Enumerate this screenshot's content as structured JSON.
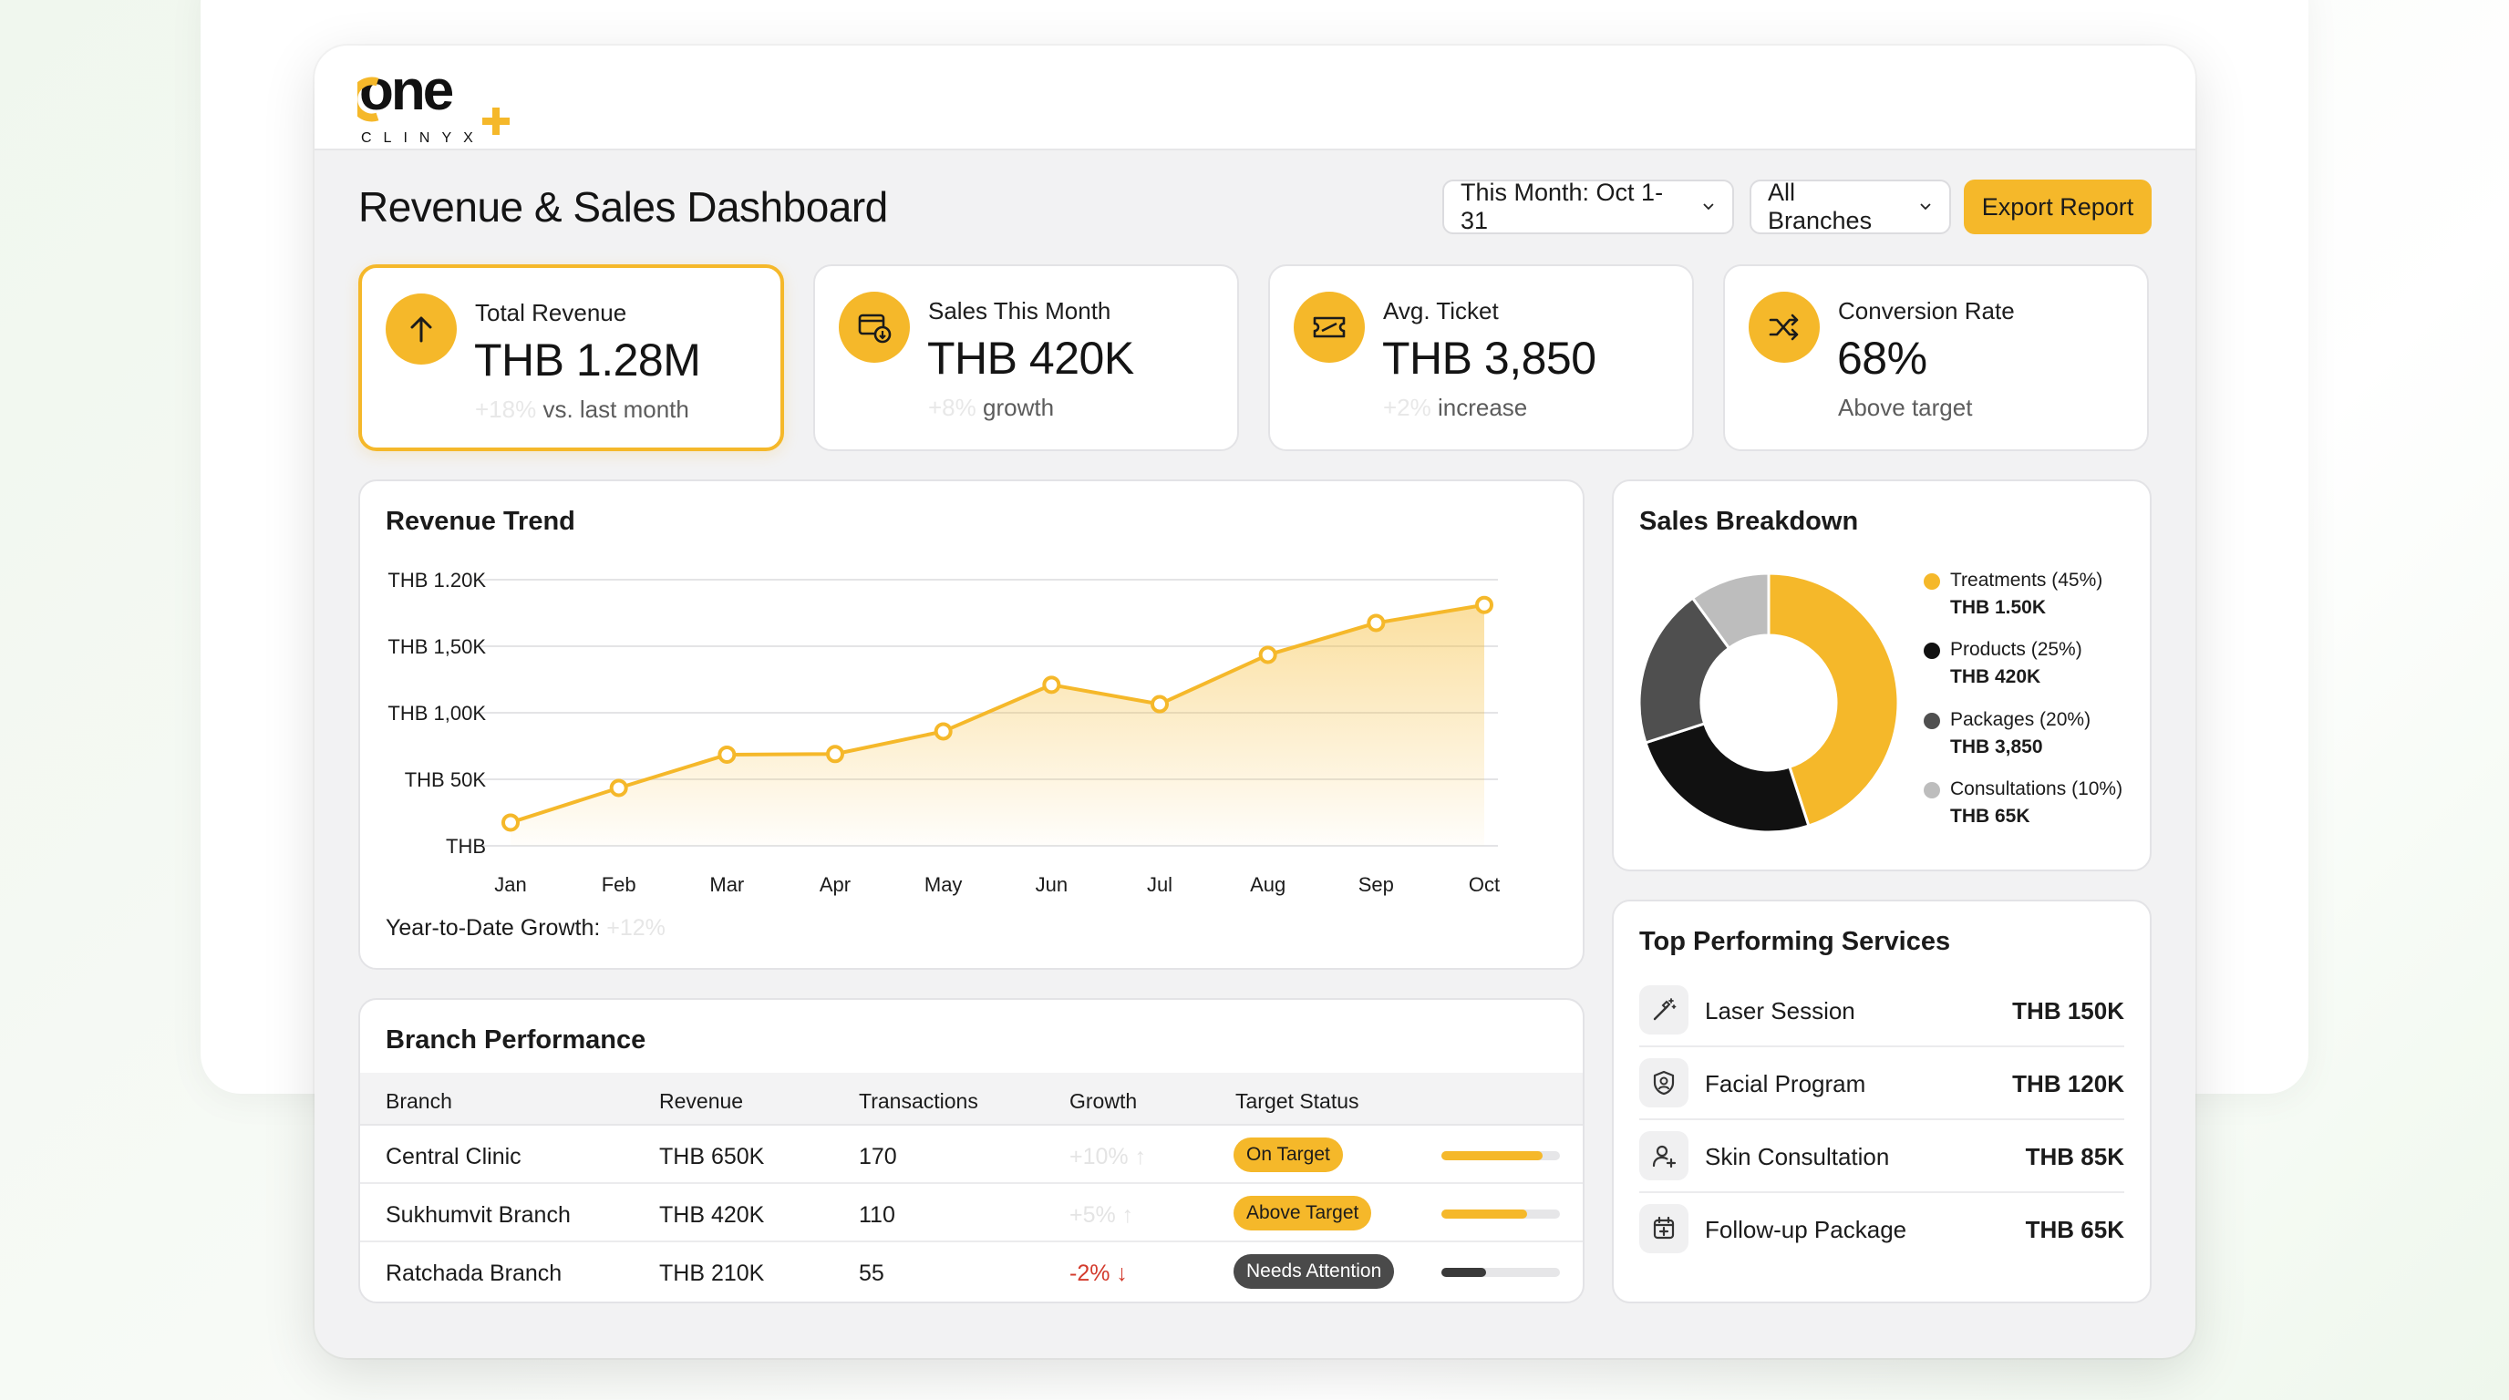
{
  "app": {
    "logo_main": "one",
    "logo_sub": "CLINYX",
    "colors": {
      "accent": "#f5b82a",
      "dark": "#111111",
      "gray": "#4f4f4f",
      "light_gray": "#bdbdbd",
      "negative": "#d33a2c"
    }
  },
  "header": {
    "title": "Revenue & Sales Dashboard",
    "date_filter": "This Month: Oct 1-31",
    "branch_filter": "All Branches",
    "export_label": "Export Report"
  },
  "kpis": [
    {
      "label": "Total Revenue",
      "value": "THB 1.28M",
      "faint": "+18%",
      "sub": " vs. last month",
      "icon": "arrow-up-icon"
    },
    {
      "label": "Sales This Month",
      "value": "THB 420K",
      "faint": "+8%",
      "sub": " growth",
      "icon": "wallet-icon"
    },
    {
      "label": "Avg. Ticket",
      "value": "THB 3,850",
      "faint": "+2%",
      "sub": " increase",
      "icon": "ticket-icon"
    },
    {
      "label": "Conversion Rate",
      "value": "68%",
      "faint": "",
      "sub": "Above target",
      "icon": "shuffle-icon"
    }
  ],
  "trend": {
    "title": "Revenue Trend",
    "ytd_label": "Year-to-Date Growth: ",
    "ytd_value": "+12%"
  },
  "chart_data": [
    {
      "type": "area",
      "title": "Revenue Trend",
      "categories": [
        "Jan",
        "Feb",
        "Mar",
        "Apr",
        "May",
        "Jun",
        "Jul",
        "Aug",
        "Sep",
        "Oct"
      ],
      "y_tick_labels": [
        "THB",
        "THB 50K",
        "THB 1,00K",
        "THB 1,50K",
        "THB 1.20K"
      ],
      "ylim": [
        0,
        4
      ],
      "values": [
        0.35,
        0.87,
        1.37,
        1.38,
        1.72,
        2.42,
        2.13,
        2.87,
        3.35,
        3.62
      ],
      "grid": true
    },
    {
      "type": "pie",
      "title": "Sales Breakdown",
      "labels": [
        "Treatments (45%)",
        "Products (25%)",
        "Packages (20%)",
        "Consultations (10%)"
      ],
      "values": [
        45,
        25,
        20,
        10
      ],
      "value_labels": [
        "THB 1.50K",
        "THB 420K",
        "THB 3,850",
        "THB 65K"
      ],
      "colors": [
        "#f5b82a",
        "#111111",
        "#4f4f4f",
        "#bdbdbd"
      ],
      "legend": "right"
    }
  ],
  "breakdown": {
    "title": "Sales Breakdown"
  },
  "services": {
    "title": "Top Performing Services",
    "items": [
      {
        "name": "Laser Session",
        "value": "THB 150K",
        "icon": "magic-wand-icon"
      },
      {
        "name": "Facial Program",
        "value": "THB 120K",
        "icon": "face-shield-icon"
      },
      {
        "name": "Skin Consultation",
        "value": "THB 85K",
        "icon": "user-add-icon"
      },
      {
        "name": "Follow-up Package",
        "value": "THB 65K",
        "icon": "calendar-add-icon"
      }
    ]
  },
  "branches": {
    "title": "Branch Performance",
    "headers": [
      "Branch",
      "Revenue",
      "Transactions",
      "Growth",
      "Target Status"
    ],
    "rows": [
      {
        "branch": "Central Clinic",
        "revenue": "THB 650K",
        "transactions": "170",
        "growth": "+10% ↑",
        "growth_faint": true,
        "status": "On Target",
        "status_style": "yellow",
        "progress": 0.85,
        "bar_color": "#f5b82a"
      },
      {
        "branch": "Sukhumvit Branch",
        "revenue": "THB 420K",
        "transactions": "110",
        "growth": "+5% ↑",
        "growth_faint": true,
        "status": "Above Target",
        "status_style": "yellow",
        "progress": 0.72,
        "bar_color": "#f5b82a"
      },
      {
        "branch": "Ratchada Branch",
        "revenue": "THB 210K",
        "transactions": "55",
        "growth": "-2% ↓",
        "growth_faint": false,
        "status": "Needs Attention",
        "status_style": "dark",
        "progress": 0.38,
        "bar_color": "#3a3a3a"
      }
    ]
  }
}
